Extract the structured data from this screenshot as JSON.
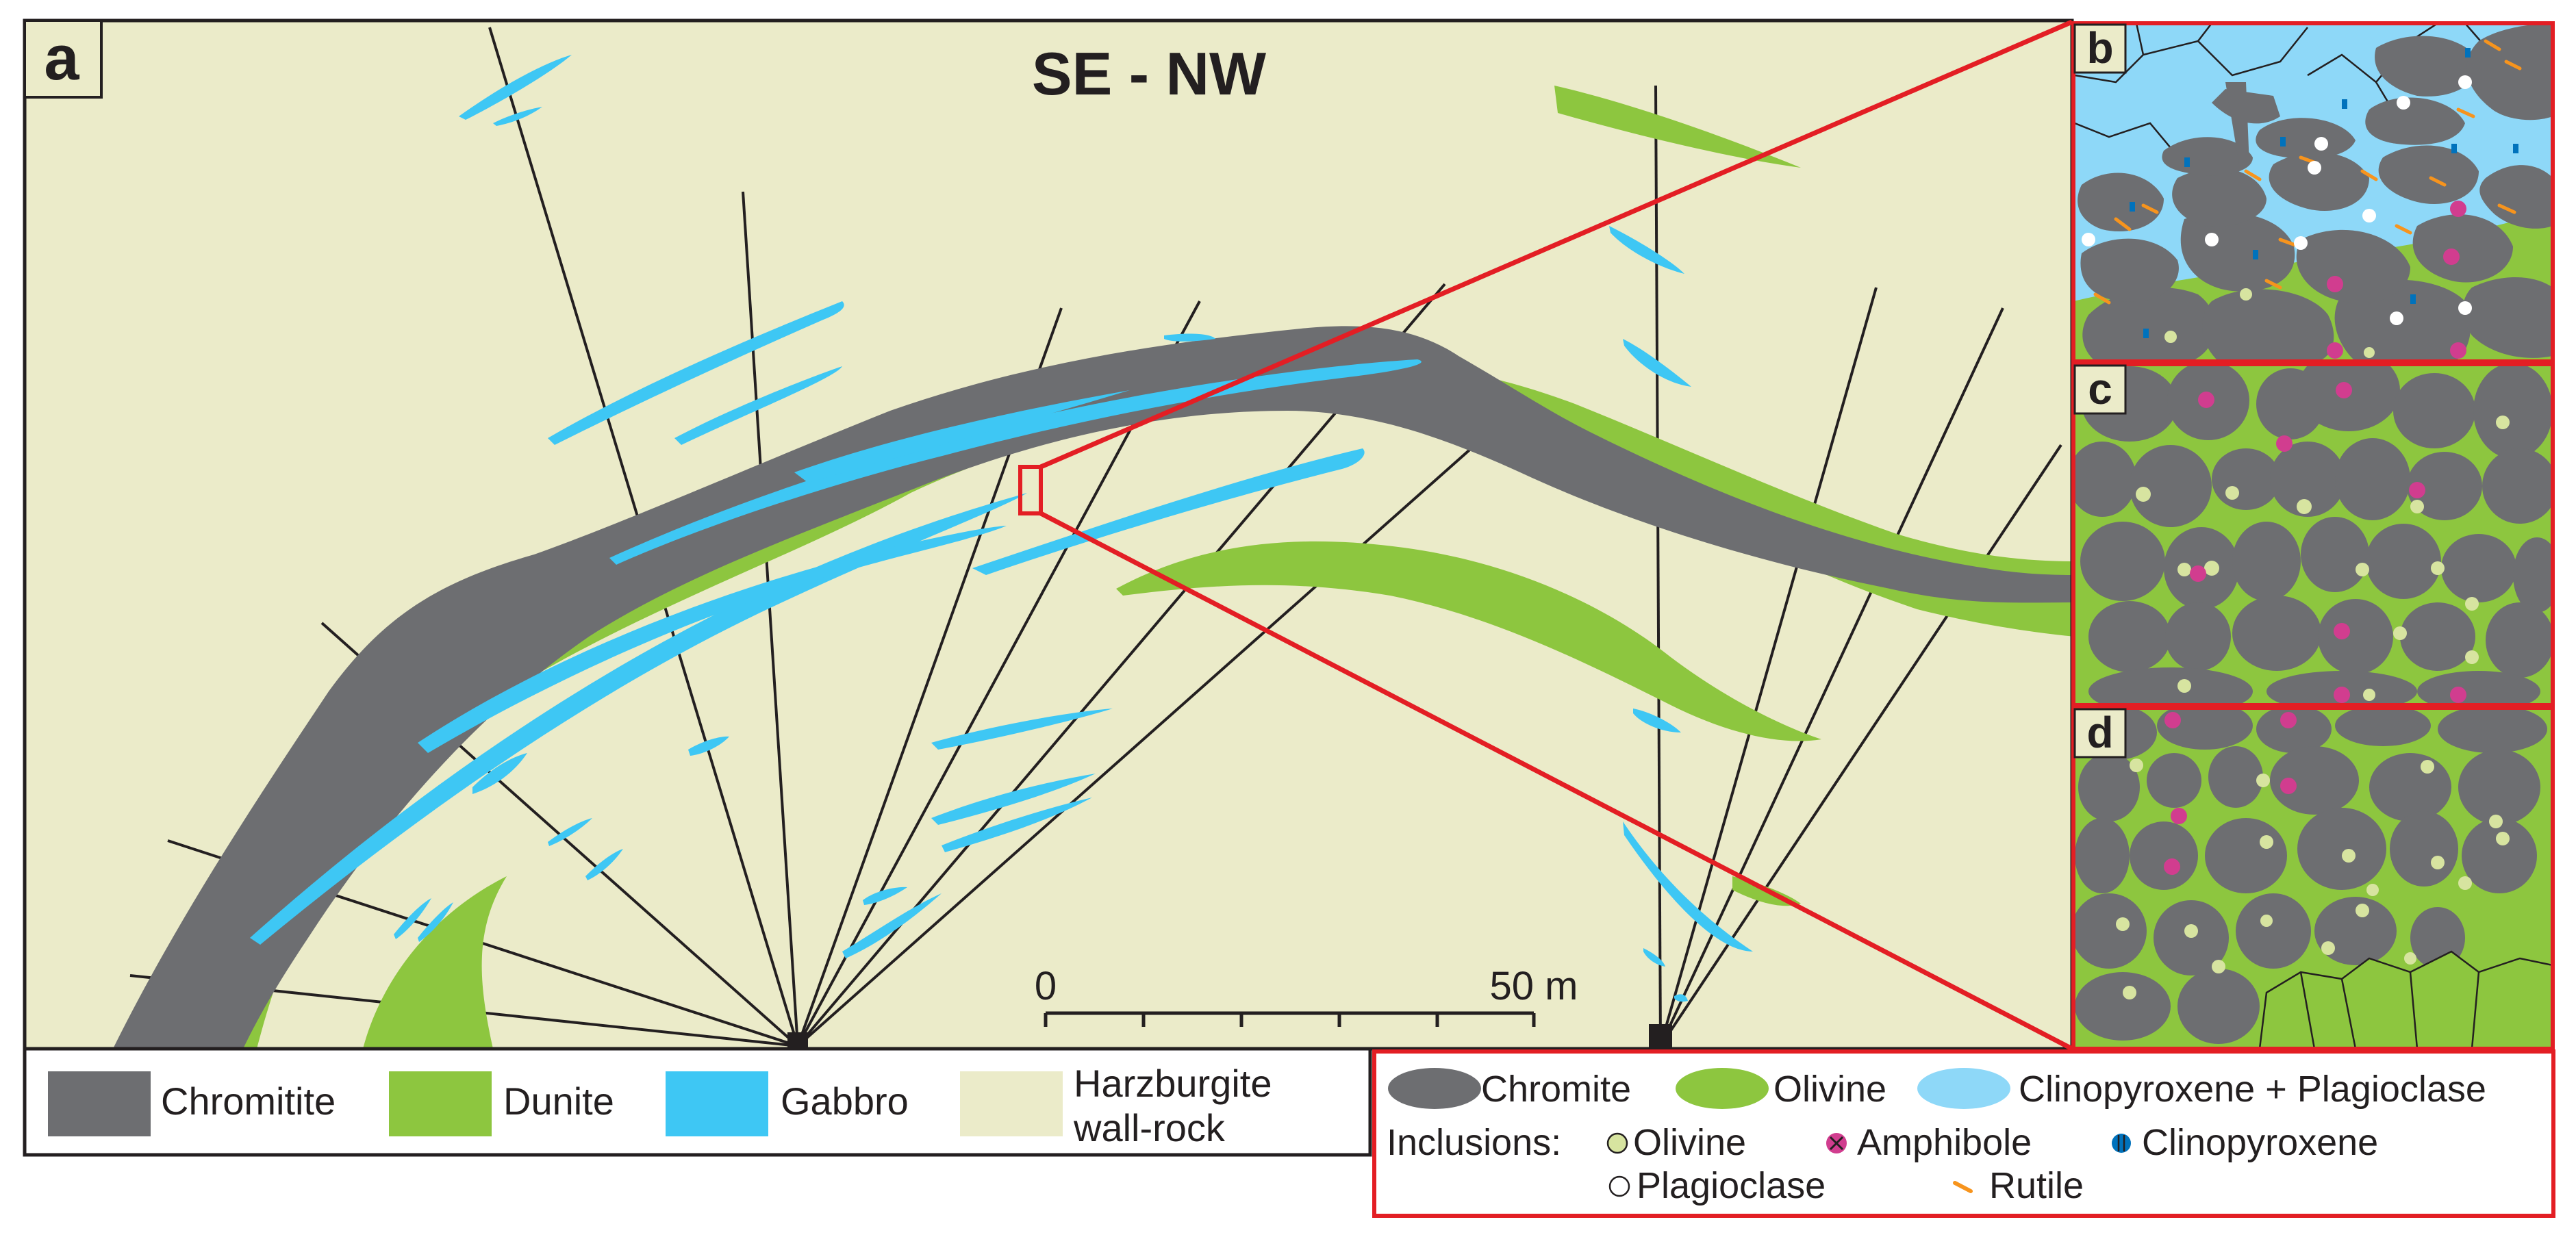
{
  "panel_a": {
    "label": "a",
    "section": "SE - NW",
    "scale": {
      "start": "0",
      "end": "50 m"
    }
  },
  "panel_labels": {
    "b": "b",
    "c": "c",
    "d": "d"
  },
  "legend_main": {
    "items": [
      {
        "label": "Chromitite",
        "color": "#6d6e71"
      },
      {
        "label": "Dunite",
        "color": "#8dc63f"
      },
      {
        "label": "Gabbro",
        "color": "#3ec7f4"
      },
      {
        "label_line1": "Harzburgite",
        "label_line2": "wall-rock",
        "color": "#ebebc9"
      }
    ]
  },
  "legend_micro": {
    "phases": [
      {
        "label": "Chromite",
        "color": "#6d6e71"
      },
      {
        "label": "Olivine",
        "color": "#8dc63f"
      },
      {
        "label": "Clinopyroxene + Plagioclase",
        "color": "#8ed8f8"
      }
    ],
    "inclusions_title": "Inclusions:",
    "inclusions": [
      {
        "label": "Olivine",
        "icon": "olivine-dot-icon"
      },
      {
        "label": "Amphibole",
        "icon": "amphibole-cross-icon"
      },
      {
        "label": "Clinopyroxene",
        "icon": "clinopyroxene-bars-icon"
      },
      {
        "label": "Plagioclase",
        "icon": "plagioclase-circle-icon"
      },
      {
        "label": "Rutile",
        "icon": "rutile-dash-icon"
      }
    ]
  },
  "colors": {
    "chromite": "#6d6e71",
    "olivine": "#8dc63f",
    "gabbro": "#3ec7f4",
    "cpx_plag": "#8ed8f8",
    "harzburgite": "#ebebc9",
    "zoom_frame": "#e31e24",
    "amphibole": "#d13d8f",
    "rutile": "#f7941d"
  }
}
